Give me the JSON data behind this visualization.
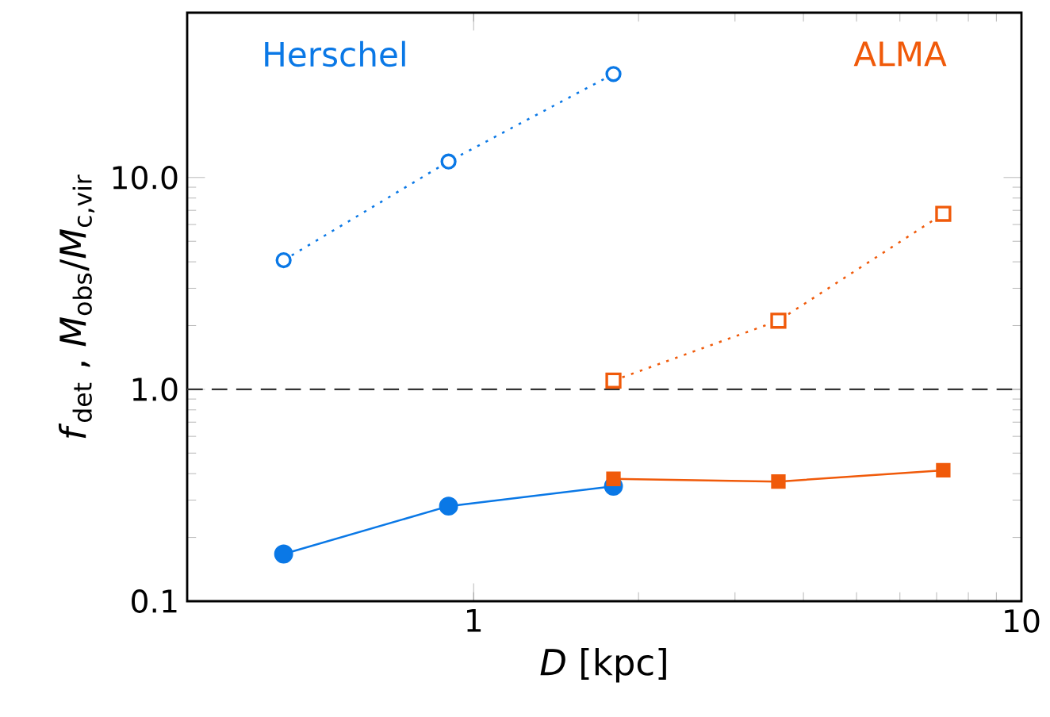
{
  "chart_data": {
    "type": "line",
    "xlabel": "*D* [kpc]",
    "ylabel": "*f*$_{det}$ ,  *M*$_{obs}$/*M*$_{c,vir}$",
    "log": "xy",
    "xlim": [
      0.3,
      10
    ],
    "ylim": [
      0.1,
      60
    ],
    "xticks": [
      1,
      10
    ],
    "yticks": [
      {
        "value": 0.1,
        "label": "0.1"
      },
      {
        "value": 1,
        "label": "1.0"
      },
      {
        "value": 10,
        "label": "10.0"
      }
    ],
    "series": [
      {
        "name": "Herschel",
        "color": "#0a78e6",
        "x": [
          0.45,
          0.9,
          1.8
        ],
        "values": [
          4.07,
          11.9,
          30.8
        ],
        "marker": "circle",
        "line_style": "dotted"
      },
      {
        "name": "ALMA",
        "color": "#f05a0a",
        "x": [
          1.8,
          3.6,
          7.2
        ],
        "values": [
          1.1,
          2.11,
          6.74
        ],
        "marker": "square",
        "line_style": "dotted"
      },
      {
        "color": "#0a78e6",
        "x": [
          0.45,
          0.9,
          1.8
        ],
        "values": [
          0.167,
          0.281,
          0.349
        ],
        "marker": "circle",
        "line_style": "solid"
      },
      {
        "color": "#f05a0a",
        "x": [
          1.8,
          3.6,
          7.2
        ],
        "values": [
          0.378,
          0.367,
          0.415
        ],
        "marker": "square",
        "line_style": "solid"
      }
    ],
    "ref_lines": [
      {
        "axis": "y",
        "value": 1,
        "line_style": "dashed",
        "color": "#333333"
      }
    ]
  }
}
